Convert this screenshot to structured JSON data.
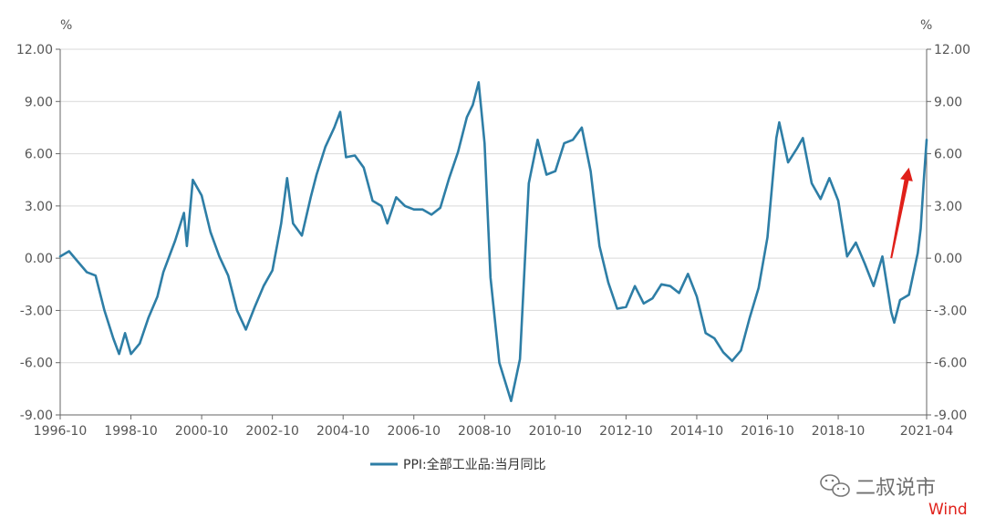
{
  "chart_data": {
    "type": "line",
    "title": "",
    "xlabel": "",
    "ylabel": "",
    "unit_left": "%",
    "unit_right": "%",
    "ylim": [
      -9,
      12
    ],
    "xlim": [
      "1996-10",
      "2021-04"
    ],
    "y_ticks": [
      "12.00",
      "9.00",
      "6.00",
      "3.00",
      "0.00",
      "-3.00",
      "-6.00",
      "-9.00"
    ],
    "y_tick_values": [
      12,
      9,
      6,
      3,
      0,
      -3,
      -6,
      -9
    ],
    "x_ticks": [
      "1996-10",
      "1998-10",
      "2000-10",
      "2002-10",
      "2004-10",
      "2006-10",
      "2008-10",
      "2010-10",
      "2012-10",
      "2014-10",
      "2016-10",
      "2018-10",
      "2021-04"
    ],
    "grid": "horizontal",
    "legend": "bottom-center",
    "series": [
      {
        "name": "PPI:全部工业品:当月同比",
        "color": "#2e7ea6",
        "points": [
          [
            "1996-10",
            0.1
          ],
          [
            "1997-01",
            0.4
          ],
          [
            "1997-04",
            -0.2
          ],
          [
            "1997-07",
            -0.8
          ],
          [
            "1997-10",
            -1.0
          ],
          [
            "1998-01",
            -3.0
          ],
          [
            "1998-04",
            -4.6
          ],
          [
            "1998-06",
            -5.5
          ],
          [
            "1998-08",
            -4.3
          ],
          [
            "1998-10",
            -5.5
          ],
          [
            "1999-01",
            -4.9
          ],
          [
            "1999-04",
            -3.4
          ],
          [
            "1999-07",
            -2.2
          ],
          [
            "1999-09",
            -0.8
          ],
          [
            "2000-01",
            1.0
          ],
          [
            "2000-04",
            2.6
          ],
          [
            "2000-05",
            0.7
          ],
          [
            "2000-07",
            4.5
          ],
          [
            "2000-10",
            3.6
          ],
          [
            "2001-01",
            1.5
          ],
          [
            "2001-04",
            0.1
          ],
          [
            "2001-07",
            -1.0
          ],
          [
            "2001-10",
            -3.0
          ],
          [
            "2002-01",
            -4.1
          ],
          [
            "2002-04",
            -2.8
          ],
          [
            "2002-07",
            -1.6
          ],
          [
            "2002-10",
            -0.7
          ],
          [
            "2003-01",
            2.0
          ],
          [
            "2003-03",
            4.6
          ],
          [
            "2003-05",
            2.0
          ],
          [
            "2003-08",
            1.3
          ],
          [
            "2003-11",
            3.5
          ],
          [
            "2004-01",
            4.8
          ],
          [
            "2004-04",
            6.4
          ],
          [
            "2004-07",
            7.5
          ],
          [
            "2004-09",
            8.4
          ],
          [
            "2004-11",
            5.8
          ],
          [
            "2005-02",
            5.9
          ],
          [
            "2005-05",
            5.2
          ],
          [
            "2005-08",
            3.3
          ],
          [
            "2005-11",
            3.0
          ],
          [
            "2006-01",
            2.0
          ],
          [
            "2006-04",
            3.5
          ],
          [
            "2006-07",
            3.0
          ],
          [
            "2006-10",
            2.8
          ],
          [
            "2007-01",
            2.8
          ],
          [
            "2007-04",
            2.5
          ],
          [
            "2007-07",
            2.9
          ],
          [
            "2007-10",
            4.6
          ],
          [
            "2008-01",
            6.1
          ],
          [
            "2008-04",
            8.1
          ],
          [
            "2008-06",
            8.8
          ],
          [
            "2008-08",
            10.1
          ],
          [
            "2008-10",
            6.6
          ],
          [
            "2008-12",
            -1.1
          ],
          [
            "2009-03",
            -6.0
          ],
          [
            "2009-07",
            -8.2
          ],
          [
            "2009-10",
            -5.8
          ],
          [
            "2010-01",
            4.3
          ],
          [
            "2010-04",
            6.8
          ],
          [
            "2010-07",
            4.8
          ],
          [
            "2010-10",
            5.0
          ],
          [
            "2011-01",
            6.6
          ],
          [
            "2011-04",
            6.8
          ],
          [
            "2011-07",
            7.5
          ],
          [
            "2011-10",
            5.0
          ],
          [
            "2012-01",
            0.7
          ],
          [
            "2012-04",
            -1.4
          ],
          [
            "2012-07",
            -2.9
          ],
          [
            "2012-10",
            -2.8
          ],
          [
            "2013-01",
            -1.6
          ],
          [
            "2013-04",
            -2.6
          ],
          [
            "2013-07",
            -2.3
          ],
          [
            "2013-10",
            -1.5
          ],
          [
            "2014-01",
            -1.6
          ],
          [
            "2014-04",
            -2.0
          ],
          [
            "2014-07",
            -0.9
          ],
          [
            "2014-10",
            -2.2
          ],
          [
            "2015-01",
            -4.3
          ],
          [
            "2015-04",
            -4.6
          ],
          [
            "2015-07",
            -5.4
          ],
          [
            "2015-10",
            -5.9
          ],
          [
            "2016-01",
            -5.3
          ],
          [
            "2016-04",
            -3.4
          ],
          [
            "2016-07",
            -1.7
          ],
          [
            "2016-10",
            1.2
          ],
          [
            "2017-01",
            6.9
          ],
          [
            "2017-02",
            7.8
          ],
          [
            "2017-05",
            5.5
          ],
          [
            "2017-08",
            6.3
          ],
          [
            "2017-10",
            6.9
          ],
          [
            "2018-01",
            4.3
          ],
          [
            "2018-04",
            3.4
          ],
          [
            "2018-07",
            4.6
          ],
          [
            "2018-10",
            3.3
          ],
          [
            "2019-01",
            0.1
          ],
          [
            "2019-04",
            0.9
          ],
          [
            "2019-07",
            -0.3
          ],
          [
            "2019-10",
            -1.6
          ],
          [
            "2020-01",
            0.1
          ],
          [
            "2020-04",
            -3.1
          ],
          [
            "2020-05",
            -3.7
          ],
          [
            "2020-07",
            -2.4
          ],
          [
            "2020-10",
            -2.1
          ],
          [
            "2021-01",
            0.3
          ],
          [
            "2021-02",
            1.7
          ],
          [
            "2021-03",
            4.4
          ],
          [
            "2021-04",
            6.8
          ]
        ]
      }
    ],
    "annotations": [
      {
        "type": "arrow",
        "color": "#e0201a",
        "from": [
          "2020-04",
          0.0
        ],
        "to": [
          "2020-10",
          5.2
        ]
      }
    ]
  },
  "watermark": {
    "text": "二叔说市",
    "source": "Wind",
    "source_color": "#e0201a"
  }
}
